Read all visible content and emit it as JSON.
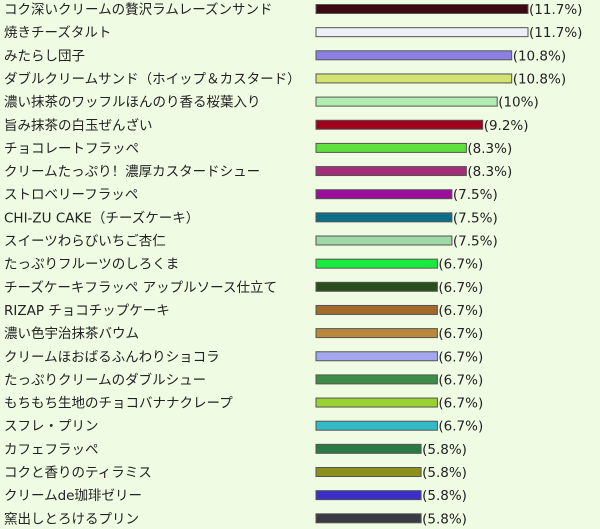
{
  "chart_data": {
    "type": "bar",
    "orientation": "horizontal",
    "title": "",
    "xlabel": "",
    "ylabel": "",
    "xlim": [
      0,
      11.7
    ],
    "grid": false,
    "legend": "none",
    "categories": [
      "コク深いクリームの贅沢ラムレーズンサンド",
      "焼きチーズタルト",
      "みたらし団子",
      "ダブルクリームサンド（ホイップ＆カスタード）",
      "濃い抹茶のワッフルほんのり香る桜葉入り",
      "旨み抹茶の白玉ぜんざい",
      "チョコレートフラッペ",
      "クリームたっぷり！濃厚カスタードシュー",
      "ストロベリーフラッペ",
      "CHI-ZU CAKE（チーズケーキ）",
      "スイーツわらびいちご杏仁",
      "たっぷりフルーツのしろくま",
      "チーズケーキフラッペ アップルソース仕立て",
      "RIZAP チョコチップケーキ",
      "濃い色宇治抹茶バウム",
      "クリームほおばるふんわりショコラ",
      "たっぷりクリームのダブルシュー",
      "もちもち生地のチョコバナナクレープ",
      "スフレ・プリン",
      "カフェフラッペ",
      "コクと香りのティラミス",
      "クリームde珈琲ゼリー",
      "窯出しとろけるプリン"
    ],
    "values": [
      11.7,
      11.7,
      10.8,
      10.8,
      10,
      9.2,
      8.3,
      8.3,
      7.5,
      7.5,
      7.5,
      6.7,
      6.7,
      6.7,
      6.7,
      6.7,
      6.7,
      6.7,
      6.7,
      5.8,
      5.8,
      5.8,
      5.8
    ],
    "value_labels": [
      "(11.7%)",
      "(11.7%)",
      "(10.8%)",
      "(10.8%)",
      "(10%)",
      "(9.2%)",
      "(8.3%)",
      "(8.3%)",
      "(7.5%)",
      "(7.5%)",
      "(7.5%)",
      "(6.7%)",
      "(6.7%)",
      "(6.7%)",
      "(6.7%)",
      "(6.7%)",
      "(6.7%)",
      "(6.7%)",
      "(6.7%)",
      "(5.8%)",
      "(5.8%)",
      "(5.8%)",
      "(5.8%)"
    ],
    "colors": [
      "#3d0814",
      "#eeeef6",
      "#8d7fe2",
      "#d2e36f",
      "#b0eeb0",
      "#a0001d",
      "#5fe03c",
      "#a52e79",
      "#9a0f9a",
      "#0d6e8a",
      "#9ed9a7",
      "#19ea3e",
      "#2b4d1c",
      "#a36a2d",
      "#b8893c",
      "#a3a7ee",
      "#3e8c46",
      "#99d230",
      "#34b9c7",
      "#2a7a45",
      "#8c901c",
      "#3b2ec9",
      "#3a3a42"
    ]
  }
}
